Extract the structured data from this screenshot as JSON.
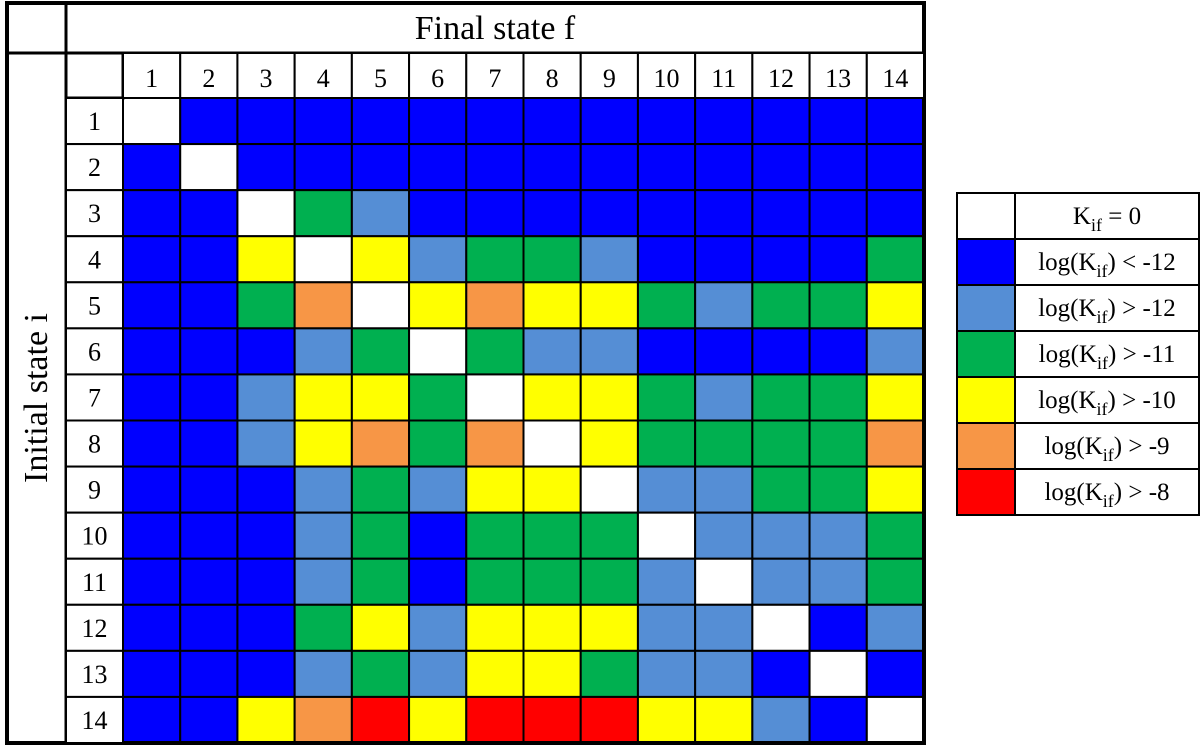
{
  "chart_data": {
    "type": "heatmap",
    "title": "Final state f",
    "xlabel": "Final state f",
    "ylabel": "Initial state i",
    "x_categories": [
      "1",
      "2",
      "3",
      "4",
      "5",
      "6",
      "7",
      "8",
      "9",
      "10",
      "11",
      "12",
      "13",
      "14"
    ],
    "y_categories": [
      "1",
      "2",
      "3",
      "4",
      "5",
      "6",
      "7",
      "8",
      "9",
      "10",
      "11",
      "12",
      "13",
      "14"
    ],
    "level_colors": [
      "#ffffff",
      "#0000ff",
      "#558ed5",
      "#00b050",
      "#ffff00",
      "#f79646",
      "#ff0000"
    ],
    "legend": [
      {
        "level": 0,
        "main": "K",
        "sub": "if",
        "suffix": " = 0",
        "prefix": ""
      },
      {
        "level": 1,
        "prefix": "log(K",
        "sub": "if",
        "suffix": ") < -12"
      },
      {
        "level": 2,
        "prefix": "log(K",
        "sub": "if",
        "suffix": ") > -12"
      },
      {
        "level": 3,
        "prefix": "log(K",
        "sub": "if",
        "suffix": ") > -11"
      },
      {
        "level": 4,
        "prefix": "log(K",
        "sub": "if",
        "suffix": ") > -10"
      },
      {
        "level": 5,
        "prefix": "log(K",
        "sub": "if",
        "suffix": ") > -9"
      },
      {
        "level": 6,
        "prefix": "log(K",
        "sub": "if",
        "suffix": ") > -8"
      }
    ],
    "values": [
      [
        0,
        1,
        1,
        1,
        1,
        1,
        1,
        1,
        1,
        1,
        1,
        1,
        1,
        1
      ],
      [
        1,
        0,
        1,
        1,
        1,
        1,
        1,
        1,
        1,
        1,
        1,
        1,
        1,
        1
      ],
      [
        1,
        1,
        0,
        3,
        2,
        1,
        1,
        1,
        1,
        1,
        1,
        1,
        1,
        1
      ],
      [
        1,
        1,
        4,
        0,
        4,
        2,
        3,
        3,
        2,
        1,
        1,
        1,
        1,
        3
      ],
      [
        1,
        1,
        3,
        5,
        0,
        4,
        5,
        4,
        4,
        3,
        2,
        3,
        3,
        4
      ],
      [
        1,
        1,
        1,
        2,
        3,
        0,
        3,
        2,
        2,
        1,
        1,
        1,
        1,
        2
      ],
      [
        1,
        1,
        2,
        4,
        4,
        3,
        0,
        4,
        4,
        3,
        2,
        3,
        3,
        4
      ],
      [
        1,
        1,
        2,
        4,
        5,
        3,
        5,
        0,
        4,
        3,
        3,
        3,
        3,
        5
      ],
      [
        1,
        1,
        1,
        2,
        3,
        2,
        4,
        4,
        0,
        2,
        2,
        3,
        3,
        4
      ],
      [
        1,
        1,
        1,
        2,
        3,
        1,
        3,
        3,
        3,
        0,
        2,
        2,
        2,
        3
      ],
      [
        1,
        1,
        1,
        2,
        3,
        1,
        3,
        3,
        3,
        2,
        0,
        2,
        2,
        3
      ],
      [
        1,
        1,
        1,
        3,
        4,
        2,
        4,
        4,
        4,
        2,
        2,
        0,
        1,
        2
      ],
      [
        1,
        1,
        1,
        2,
        3,
        2,
        4,
        4,
        3,
        2,
        2,
        1,
        0,
        1
      ],
      [
        1,
        1,
        4,
        5,
        6,
        4,
        6,
        6,
        6,
        4,
        4,
        2,
        1,
        0
      ]
    ],
    "legend_placement": "right"
  }
}
